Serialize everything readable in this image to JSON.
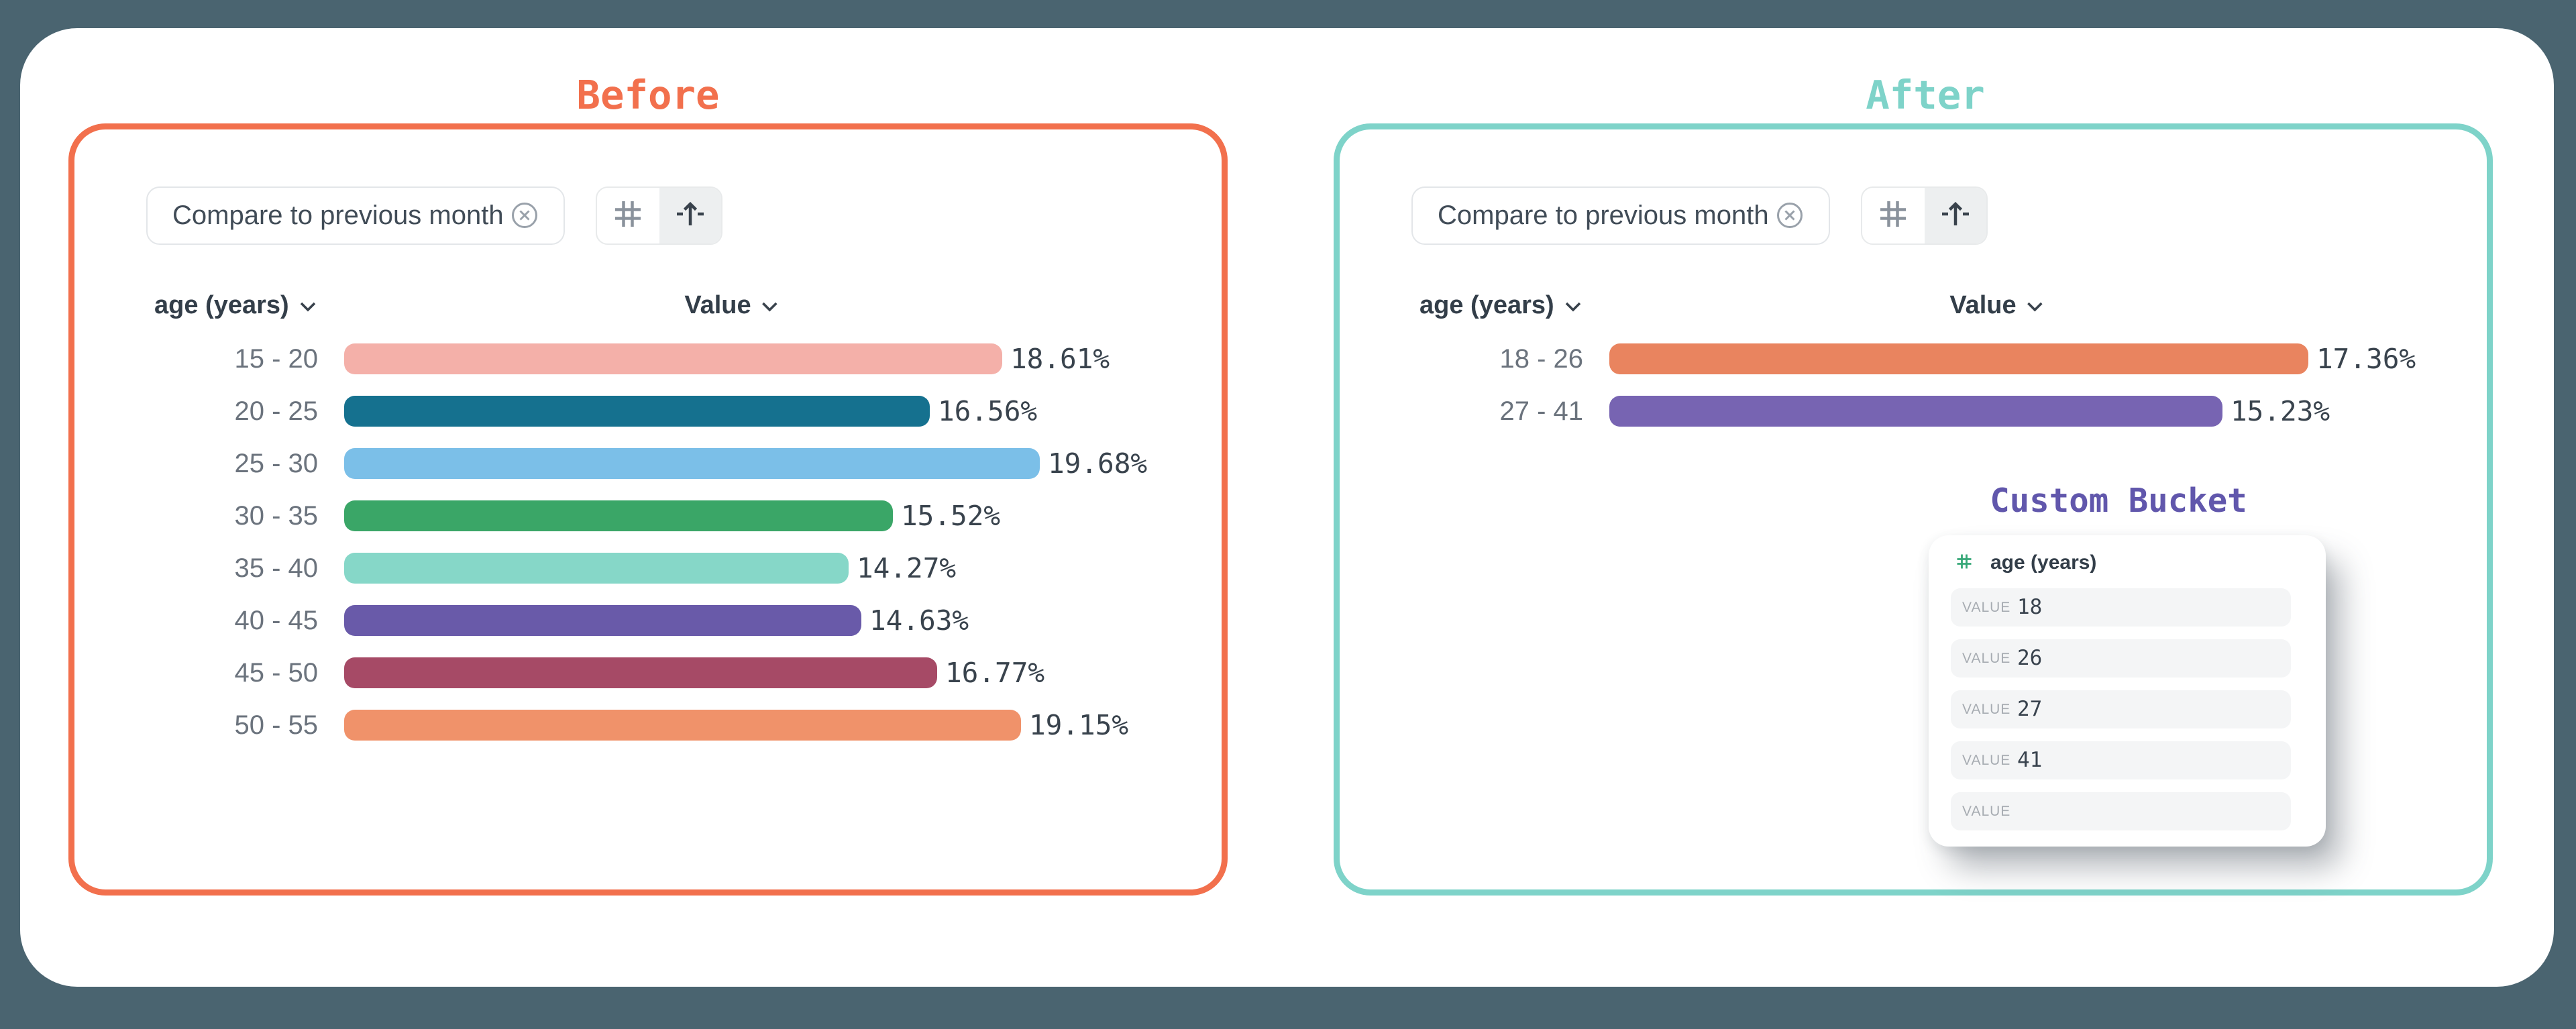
{
  "page": {
    "background": "#4a6470",
    "card_background": "#ffffff"
  },
  "before": {
    "title": "Before",
    "accent_color": "#f2704d",
    "chip": {
      "label": "Compare to previous month",
      "close_icon": "x-circle-icon"
    },
    "toolbar": {
      "buttons": [
        {
          "icon": "hash-icon",
          "active": false
        },
        {
          "icon": "arrow-up-icon",
          "active": true
        }
      ]
    },
    "columns": {
      "dimension": "age (years)",
      "measure": "Value",
      "sort_icon": "chevron-down-icon"
    },
    "chart_data": {
      "type": "bar",
      "orientation": "horizontal",
      "categories": [
        "15 - 20",
        "20 - 25",
        "25 - 30",
        "30 - 35",
        "35 - 40",
        "40 - 45",
        "45 - 50",
        "50 - 55"
      ],
      "values": [
        18.61,
        16.56,
        19.68,
        15.52,
        14.27,
        14.63,
        16.77,
        19.15
      ],
      "value_format": "percent",
      "bar_colors": [
        "#f4b0a9",
        "#15718f",
        "#7bbfe8",
        "#3aa667",
        "#86d7c8",
        "#695aa9",
        "#a64a66",
        "#f0926a"
      ]
    }
  },
  "after": {
    "title": "After",
    "accent_color": "#7ed3c9",
    "chip": {
      "label": "Compare to previous month",
      "close_icon": "x-circle-icon"
    },
    "toolbar": {
      "buttons": [
        {
          "icon": "hash-icon",
          "active": false
        },
        {
          "icon": "arrow-up-icon",
          "active": true
        }
      ]
    },
    "columns": {
      "dimension": "age (years)",
      "measure": "Value",
      "sort_icon": "chevron-down-icon"
    },
    "chart_data": {
      "type": "bar",
      "orientation": "horizontal",
      "categories": [
        "18 - 26",
        "27 - 41"
      ],
      "values": [
        17.36,
        15.23
      ],
      "value_format": "percent",
      "bar_colors": [
        "#e9845f",
        "#7764b2"
      ]
    },
    "custom_bucket": {
      "title": "Custom Bucket",
      "title_color": "#6157ac",
      "field": {
        "icon": "hash-icon",
        "icon_color": "#36a877",
        "label": "age (years)"
      },
      "rows": [
        {
          "label": "VALUE",
          "value": "18"
        },
        {
          "label": "VALUE",
          "value": "26"
        },
        {
          "label": "VALUE",
          "value": "27"
        },
        {
          "label": "VALUE",
          "value": "41"
        },
        {
          "label": "VALUE",
          "value": ""
        }
      ]
    }
  }
}
